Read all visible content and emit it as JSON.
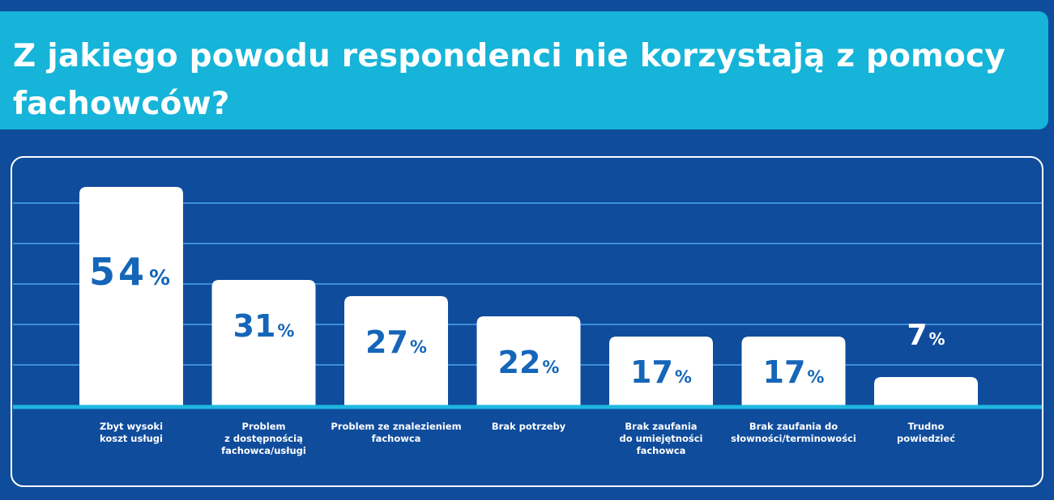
{
  "title": "Z jakiego powodu respondenci nie korzystają z pomocy fachowców?",
  "colors": {
    "background": "#0f4c9c",
    "banner": "#16b4d8",
    "bar": "#ffffff",
    "gridline": "#3c8fd6",
    "baseline": "#1fb8e0",
    "value_text_on_bar": "#1566b8",
    "value_text_outside": "#ffffff"
  },
  "chart_data": {
    "type": "bar",
    "unit": "%",
    "categories": [
      [
        "Zbyt wysoki",
        "koszt usługi"
      ],
      [
        "Problem",
        "z dostępnością",
        "fachowca/usługi"
      ],
      [
        "Problem ze znalezieniem",
        "fachowca"
      ],
      [
        "Brak potrzeby"
      ],
      [
        "Brak zaufania",
        "do umiejętności",
        "fachowca"
      ],
      [
        "Brak zaufania do",
        "słowności/terminowości"
      ],
      [
        "Trudno",
        "powiedzieć"
      ]
    ],
    "values": [
      54,
      31,
      27,
      22,
      17,
      17,
      7
    ],
    "ylim": [
      0,
      55
    ],
    "grid": true,
    "legend": "none"
  }
}
